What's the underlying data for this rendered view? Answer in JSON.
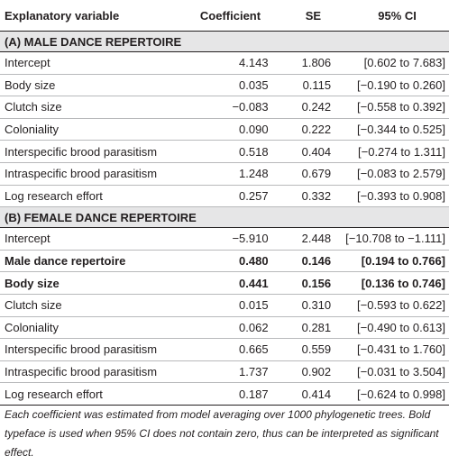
{
  "header": {
    "variable": "Explanatory variable",
    "coefficient": "Coefficient",
    "se": "SE",
    "ci": "95% CI"
  },
  "section_a": {
    "title": "(A) MALE DANCE REPERTOIRE",
    "rows": [
      {
        "variable": "Intercept",
        "coefficient": "4.143",
        "se": "1.806",
        "ci": "[0.602 to 7.683]",
        "bold": false
      },
      {
        "variable": "Body size",
        "coefficient": "0.035",
        "se": "0.115",
        "ci": "[−0.190 to 0.260]",
        "bold": false
      },
      {
        "variable": "Clutch size",
        "coefficient": "−0.083",
        "se": "0.242",
        "ci": "[−0.558 to 0.392]",
        "bold": false
      },
      {
        "variable": "Coloniality",
        "coefficient": "0.090",
        "se": "0.222",
        "ci": "[−0.344 to 0.525]",
        "bold": false
      },
      {
        "variable": "Interspecific brood parasitism",
        "coefficient": "0.518",
        "se": "0.404",
        "ci": "[−0.274 to 1.311]",
        "bold": false
      },
      {
        "variable": "Intraspecific brood parasitism",
        "coefficient": "1.248",
        "se": "0.679",
        "ci": "[−0.083 to 2.579]",
        "bold": false
      },
      {
        "variable": "Log research effort",
        "coefficient": "0.257",
        "se": "0.332",
        "ci": "[−0.393 to 0.908]",
        "bold": false
      }
    ]
  },
  "section_b": {
    "title": "(B) FEMALE DANCE REPERTOIRE",
    "rows": [
      {
        "variable": "Intercept",
        "coefficient": "−5.910",
        "se": "2.448",
        "ci": "[−10.708 to −1.111]",
        "bold": false
      },
      {
        "variable": "Male dance repertoire",
        "coefficient": "0.480",
        "se": "0.146",
        "ci": "[0.194 to 0.766]",
        "bold": true
      },
      {
        "variable": "Body size",
        "coefficient": "0.441",
        "se": "0.156",
        "ci": "[0.136 to 0.746]",
        "bold": true
      },
      {
        "variable": "Clutch size",
        "coefficient": "0.015",
        "se": "0.310",
        "ci": "[−0.593 to 0.622]",
        "bold": false
      },
      {
        "variable": "Coloniality",
        "coefficient": "0.062",
        "se": "0.281",
        "ci": "[−0.490 to 0.613]",
        "bold": false
      },
      {
        "variable": "Interspecific brood parasitism",
        "coefficient": "0.665",
        "se": "0.559",
        "ci": "[−0.431 to 1.760]",
        "bold": false
      },
      {
        "variable": "Intraspecific brood parasitism",
        "coefficient": "1.737",
        "se": "0.902",
        "ci": "[−0.031 to 3.504]",
        "bold": false
      },
      {
        "variable": "Log research effort",
        "coefficient": "0.187",
        "se": "0.414",
        "ci": "[−0.624 to 0.998]",
        "bold": false
      }
    ]
  },
  "footnote": "Each coefficient was estimated from model averaging over 1000 phylogenetic trees. Bold typeface is used when 95% CI does not contain zero, thus can be interpreted as significant effect."
}
